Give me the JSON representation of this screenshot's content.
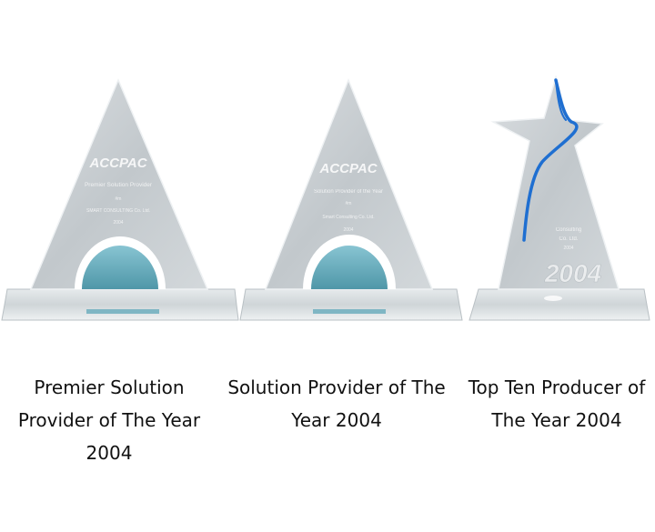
{
  "awards": [
    {
      "caption": "Premier Solution\nProvider of The Year\n2004",
      "engraving": {
        "logo": "ACCPAC",
        "line1": "Premier Solution Provider",
        "line2": "#m",
        "line3": "SMART CONSULTING Co. Ltd.",
        "line4": "2004"
      }
    },
    {
      "caption": "Solution Provider of The\nYear 2004",
      "engraving": {
        "logo": "ACCPAC",
        "line1": "Solution Provider of the Year",
        "line2": "#m",
        "line3": "Smart Consulting Co. Ltd.",
        "line4": "2004"
      }
    },
    {
      "caption": "Top Ten Producer of\nThe Year 2004",
      "engraving": {
        "line1": "Consulting",
        "line2": "Co. Ltd.",
        "line3": "2004",
        "year": "2004"
      }
    }
  ],
  "colors": {
    "glass": "#c9ced2",
    "glass_edge": "#eef1f3",
    "teal": "#6fb3c3",
    "star_blue": "#1f6fd1"
  }
}
